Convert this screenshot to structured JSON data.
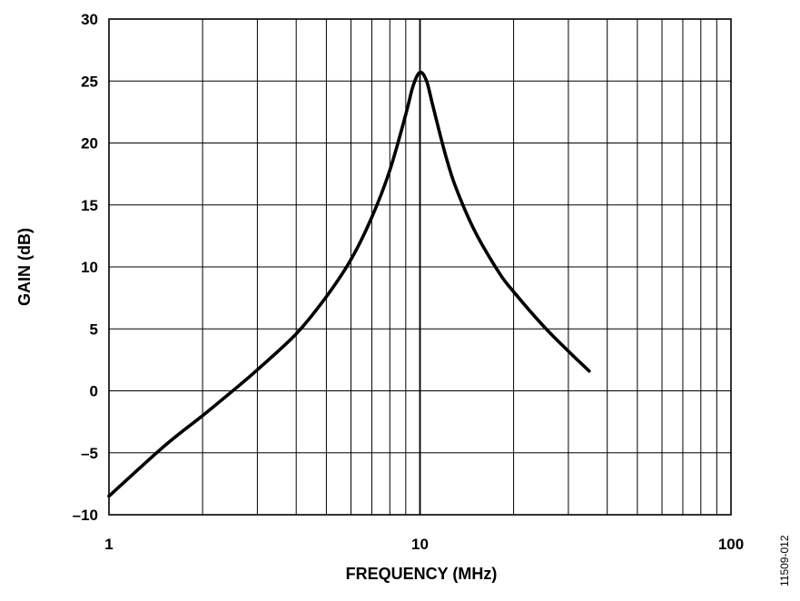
{
  "chart_data": {
    "type": "line",
    "xlabel": "FREQUENCY (MHz)",
    "ylabel": "GAIN (dB)",
    "figure_id": "11509-012",
    "x_scale": "log",
    "xlim": [
      1,
      100
    ],
    "ylim": [
      -10,
      30
    ],
    "grid": true,
    "x_ticks": [
      1,
      10,
      100
    ],
    "x_tick_labels": [
      "1",
      "10",
      "100"
    ],
    "y_ticks": [
      -10,
      -5,
      0,
      5,
      10,
      15,
      20,
      25,
      30
    ],
    "y_tick_labels": [
      "–10",
      "–5",
      "0",
      "5",
      "10",
      "15",
      "20",
      "25",
      "30"
    ],
    "series": [
      {
        "x": [
          1,
          1.5,
          2,
          2.5,
          3,
          4,
          5,
          6,
          7,
          8,
          9,
          9.5,
          10,
          10.5,
          11,
          12,
          13,
          15,
          18,
          20,
          25,
          30,
          35
        ],
        "y": [
          -8.5,
          -4.5,
          -2.0,
          0.0,
          1.7,
          4.6,
          7.6,
          10.6,
          14.0,
          17.8,
          22.3,
          24.6,
          25.7,
          25.0,
          23.0,
          19.3,
          16.5,
          12.9,
          9.5,
          8.0,
          5.2,
          3.2,
          1.6
        ],
        "color": "#000000"
      }
    ]
  }
}
